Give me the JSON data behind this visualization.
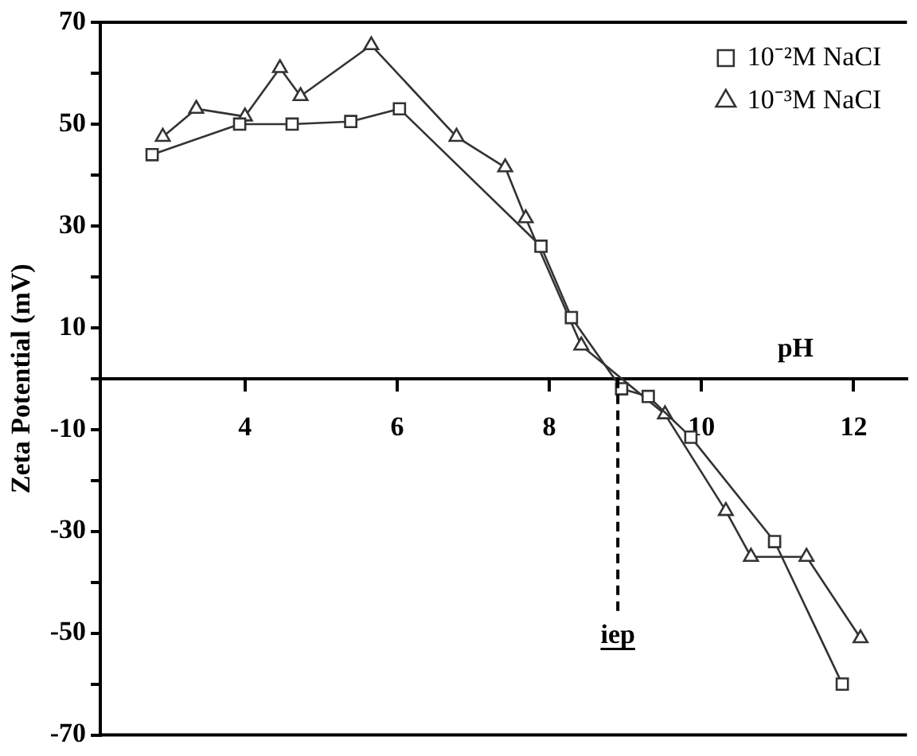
{
  "chart_data": {
    "type": "line",
    "xlabel": "pH",
    "ylabel": "Zeta Potential (mV)",
    "xlim": [
      2.1,
      12.7
    ],
    "xticks": [
      4,
      6,
      8,
      10,
      12
    ],
    "ylim": [
      -70,
      70
    ],
    "yticks": [
      -70,
      {
        "value": -60,
        "label": null
      },
      -50,
      {
        "value": -40,
        "label": null
      },
      -30,
      {
        "value": -20,
        "label": null
      },
      -10,
      {
        "value": 0,
        "label": null
      },
      10,
      {
        "value": 20,
        "label": null
      },
      30,
      {
        "value": 40,
        "label": null
      },
      50,
      {
        "value": 60,
        "label": null
      },
      70
    ],
    "grid": false,
    "legend": "top right",
    "line_style": "solid",
    "ref_lines": [
      {
        "axis": "x",
        "value": 8.9,
        "label": "iep",
        "line_style": "dashed",
        "color": "#000000"
      }
    ],
    "series": [
      {
        "name": "10⁻²M NaCI",
        "color": "#333333",
        "marker": "square",
        "x": [
          2.78,
          3.93,
          4.62,
          5.39,
          6.03,
          7.89,
          8.29,
          8.95,
          9.3,
          9.86,
          10.96,
          11.85
        ],
        "values": [
          44,
          50,
          50,
          50.5,
          53,
          26,
          12,
          -2,
          -3.5,
          -11.5,
          -32,
          -60
        ]
      },
      {
        "name": "10⁻³M NaCI",
        "color": "#333333",
        "marker": "triangle",
        "x": [
          2.92,
          3.36,
          4.0,
          4.46,
          4.73,
          5.66,
          6.78,
          7.42,
          7.69,
          8.42,
          8.9,
          9.52,
          9.86,
          10.32,
          10.65,
          11.38,
          12.09
        ],
        "values": [
          47.5,
          53,
          51.5,
          61,
          55.5,
          65.5,
          47.5,
          41.5,
          31.5,
          6.5,
          null,
          -7,
          null,
          -26,
          -35,
          -35,
          -51
        ]
      }
    ]
  }
}
